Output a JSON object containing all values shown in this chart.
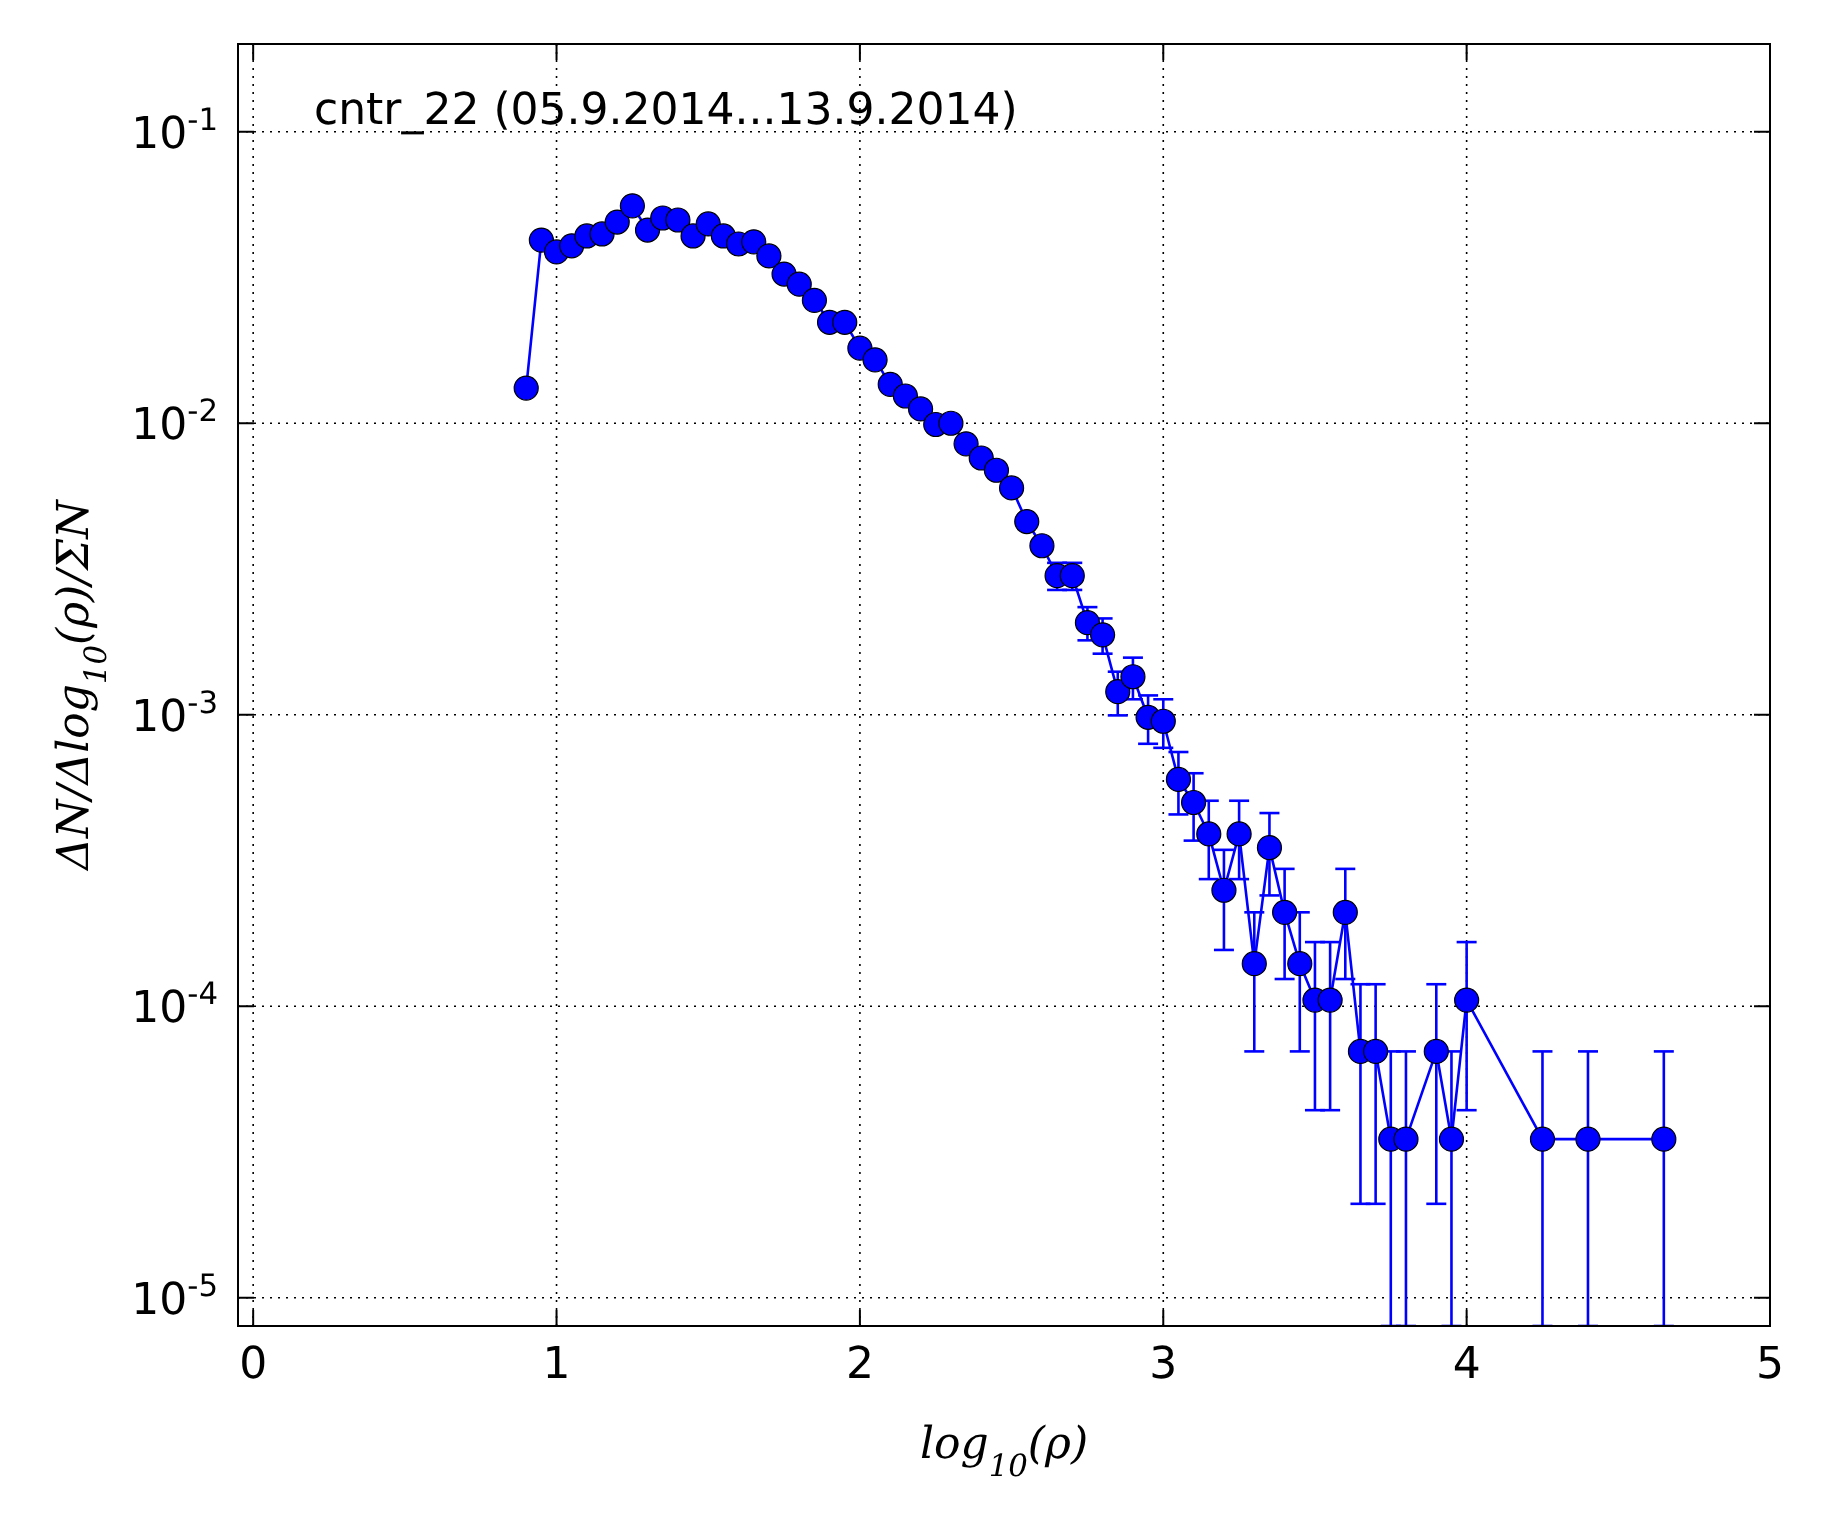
{
  "chart_data": {
    "type": "line",
    "title": "cntr_22 (05.9.2014...13.9.2014)",
    "xlabel": "log$_{10}$(ρ)",
    "ylabel": "ΔN/Δlog$_{10}$(ρ)/ΣN",
    "x": [
      0.9,
      0.95,
      1.0,
      1.05,
      1.1,
      1.15,
      1.2,
      1.25,
      1.3,
      1.35,
      1.4,
      1.45,
      1.5,
      1.55,
      1.6,
      1.65,
      1.7,
      1.75,
      1.8,
      1.85,
      1.9,
      1.95,
      2.0,
      2.05,
      2.1,
      2.15,
      2.2,
      2.25,
      2.3,
      2.35,
      2.4,
      2.45,
      2.5,
      2.55,
      2.6,
      2.65,
      2.7,
      2.75,
      2.8,
      2.85,
      2.9,
      2.95,
      3.0,
      3.05,
      3.1,
      3.15,
      3.2,
      3.25,
      3.3,
      3.35,
      3.4,
      3.45,
      3.5,
      3.55,
      3.6,
      3.65,
      3.7,
      3.75,
      3.8,
      3.9,
      3.95,
      4.0,
      4.25,
      4.4,
      4.65
    ],
    "series": [
      {
        "color": "#0000ff",
        "values": [
          0.0132,
          0.0425,
          0.0387,
          0.0406,
          0.0439,
          0.0446,
          0.049,
          0.0557,
          0.046,
          0.0506,
          0.0498,
          0.0439,
          0.0483,
          0.0439,
          0.0412,
          0.0419,
          0.0375,
          0.0325,
          0.03,
          0.0264,
          0.0222,
          0.0222,
          0.0181,
          0.0165,
          0.0136,
          0.0124,
          0.0112,
          0.0099,
          0.01,
          0.0085,
          0.0076,
          0.0069,
          0.006,
          0.0046,
          0.0038,
          0.003,
          0.003,
          0.00207,
          0.00188,
          0.0012,
          0.00135,
          0.00098,
          0.00095,
          0.0006,
          0.0005,
          0.00039,
          0.00025,
          0.00039,
          0.00014,
          0.00035,
          0.00021,
          0.00014,
          0.000105,
          0.000105,
          0.00021,
          7e-05,
          7e-05,
          3.5e-05,
          3.5e-05,
          7e-05,
          3.5e-05,
          0.000105,
          3.5e-05,
          3.5e-05,
          3.5e-05
        ],
        "errors": [
          null,
          null,
          null,
          null,
          null,
          null,
          null,
          null,
          null,
          null,
          null,
          null,
          null,
          null,
          null,
          null,
          null,
          null,
          null,
          null,
          null,
          null,
          null,
          null,
          null,
          null,
          null,
          null,
          null,
          null,
          null,
          null,
          null,
          null,
          null,
          0.00032,
          0.00032,
          0.00027,
          0.00026,
          0.000205,
          0.00022,
          0.000185,
          0.00018,
          0.000145,
          0.00013,
          0.000117,
          9.4e-05,
          0.000117,
          7e-05,
          0.00011,
          8.6e-05,
          7e-05,
          6.1e-05,
          6.1e-05,
          8.6e-05,
          4.9e-05,
          4.9e-05,
          [
            8e-06,
            7e-05
          ],
          [
            8e-06,
            7e-05
          ],
          4.9e-05,
          [
            8e-06,
            7e-05
          ],
          6.1e-05,
          [
            8e-06,
            7e-05
          ],
          [
            8e-06,
            7e-05
          ],
          [
            8e-06,
            7e-05
          ]
        ]
      }
    ],
    "xlim": [
      -0.05,
      5
    ],
    "xticks": [
      0,
      1,
      2,
      3,
      4,
      5
    ],
    "ylim": [
      8e-06,
      0.2
    ],
    "log": true,
    "yticks": [
      {
        "value": 1e-05,
        "label": "10$^{-5}$"
      },
      {
        "value": 0.0001,
        "label": "10$^{-4}$"
      },
      {
        "value": 0.001,
        "label": "10$^{-3}$"
      },
      {
        "value": 0.01,
        "label": "10$^{-2}$"
      },
      {
        "value": 0.1,
        "label": "10$^{-1}$"
      }
    ],
    "grid": true,
    "marker": "circle",
    "line_style": "solid"
  }
}
